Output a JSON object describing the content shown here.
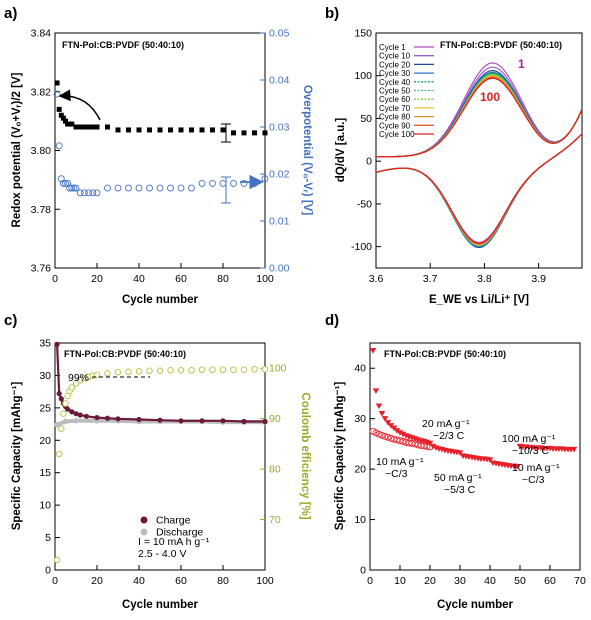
{
  "chart_data": [
    {
      "panel": "a)",
      "type": "scatter",
      "title": "FTN-Pol:CB:PVDF (50:40:10)",
      "xlabel": "Cycle number",
      "ylabel": "Redox potential (Vₒ+Vᵣ)/2 [V]",
      "ylabel_right": "Overpotential (Vₒ-Vᵣ) [V]",
      "xlim": [
        0,
        100
      ],
      "ylim": [
        3.76,
        3.84
      ],
      "ylim_right": [
        0,
        0.05
      ],
      "xticks": [
        "0",
        "20",
        "40",
        "60",
        "80",
        "100"
      ],
      "yticks": [
        "3.76",
        "3.78",
        "3.80",
        "3.82",
        "3.84"
      ],
      "yticks_right": [
        "0.00",
        "0.01",
        "0.02",
        "0.03",
        "0.04",
        "0.05"
      ],
      "colors": {
        "left": "#000000",
        "right": "#4472c4"
      },
      "series": [
        {
          "axis": "left",
          "marker": "filled-square",
          "x": [
            1,
            2,
            3,
            4,
            5,
            6,
            8,
            10,
            12,
            14,
            16,
            18,
            20,
            25,
            30,
            35,
            40,
            45,
            50,
            55,
            60,
            65,
            70,
            75,
            80,
            85,
            90,
            95,
            100
          ],
          "y": [
            3.823,
            3.814,
            3.812,
            3.811,
            3.81,
            3.809,
            3.809,
            3.808,
            3.808,
            3.808,
            3.808,
            3.808,
            3.808,
            3.808,
            3.807,
            3.807,
            3.807,
            3.807,
            3.807,
            3.807,
            3.807,
            3.807,
            3.807,
            3.807,
            3.807,
            3.806,
            3.806,
            3.806,
            3.806
          ]
        },
        {
          "axis": "right",
          "marker": "open-circle",
          "x": [
            1,
            2,
            3,
            4,
            5,
            6,
            7,
            8,
            9,
            10,
            12,
            14,
            16,
            18,
            20,
            25,
            30,
            35,
            40,
            45,
            50,
            55,
            60,
            65,
            70,
            75,
            80,
            85,
            90,
            95,
            100
          ],
          "y": [
            0.037,
            0.026,
            0.019,
            0.018,
            0.018,
            0.018,
            0.017,
            0.017,
            0.017,
            0.017,
            0.016,
            0.016,
            0.016,
            0.016,
            0.016,
            0.017,
            0.017,
            0.017,
            0.017,
            0.017,
            0.017,
            0.017,
            0.017,
            0.017,
            0.018,
            0.018,
            0.018,
            0.018,
            0.018,
            0.018,
            0.019
          ]
        }
      ]
    },
    {
      "panel": "b)",
      "type": "line",
      "title": "FTN-Pol:CB:PVDF (50:40:10)",
      "xlabel": "E_WE vs Li/Li⁺ [V]",
      "ylabel": "dQ/dV [a.u.]",
      "xlim": [
        3.6,
        3.98
      ],
      "ylim": [
        -125,
        150
      ],
      "xticks": [
        "3.6",
        "3.7",
        "3.8",
        "3.9"
      ],
      "yticks": [
        "-100",
        "-50",
        "0",
        "50",
        "100",
        "150"
      ],
      "annotations": [
        "1",
        "100"
      ],
      "legend": "top-left",
      "series": [
        {
          "name": "Cycle 1",
          "color": "#b04fc0",
          "peak": 115,
          "trough": -95
        },
        {
          "name": "Cycle 10",
          "color": "#9b5fd0",
          "peak": 110,
          "trough": -97
        },
        {
          "name": "Cycle 20",
          "color": "#1f4e9c",
          "peak": 106,
          "trough": -101
        },
        {
          "name": "Cycle 30",
          "color": "#2f6fd0",
          "peak": 104,
          "trough": -100
        },
        {
          "name": "Cycle 40",
          "color": "#19a060",
          "peak": 103,
          "trough": -99
        },
        {
          "name": "Cycle 50",
          "color": "#3cc070",
          "peak": 102,
          "trough": -99
        },
        {
          "name": "Cycle 60",
          "color": "#70d040",
          "peak": 101,
          "trough": -98
        },
        {
          "name": "Cycle 70",
          "color": "#e6c830",
          "peak": 100,
          "trough": -98
        },
        {
          "name": "Cycle 80",
          "color": "#e09030",
          "peak": 99,
          "trough": -97
        },
        {
          "name": "Cycle 90",
          "color": "#e06030",
          "peak": 98,
          "trough": -97
        },
        {
          "name": "Cycle 100",
          "color": "#e02020",
          "peak": 97,
          "trough": -96
        }
      ]
    },
    {
      "panel": "c)",
      "type": "scatter",
      "title": "FTN-Pol:CB:PVDF (50:40:10)",
      "xlabel": "Cycle number",
      "ylabel": "Specific Capacity [mAhg⁻¹]",
      "ylabel_right": "Coulomb efficiency [%]",
      "xlim": [
        0,
        100
      ],
      "ylim": [
        0,
        35
      ],
      "ylim_right": [
        60,
        105
      ],
      "xticks": [
        "0",
        "20",
        "40",
        "60",
        "80",
        "100"
      ],
      "yticks": [
        "0",
        "5",
        "10",
        "15",
        "20",
        "25",
        "30",
        "35"
      ],
      "yticks_right": [
        "70",
        "80",
        "90",
        "100"
      ],
      "annotations": [
        "99%",
        "I = 10 mA h g⁻¹",
        "2.5 - 4.0 V"
      ],
      "legend": "bottom-left",
      "colors": {
        "right": "#9aaa2a"
      },
      "series": [
        {
          "name": "Charge",
          "color": "#6b1a3a",
          "x": [
            1,
            2,
            3,
            4,
            5,
            6,
            8,
            10,
            12,
            15,
            20,
            25,
            30,
            40,
            50,
            60,
            70,
            80,
            90,
            100
          ],
          "y": [
            34.8,
            27.2,
            26.4,
            25.7,
            25.2,
            24.8,
            24.4,
            24.1,
            23.9,
            23.7,
            23.5,
            23.4,
            23.3,
            23.2,
            23.1,
            23.0,
            23.0,
            23.0,
            22.9,
            22.9
          ]
        },
        {
          "name": "Discharge",
          "color": "#bdbdbd",
          "x": [
            1,
            5,
            10,
            20,
            30,
            40,
            50,
            60,
            70,
            80,
            90,
            100
          ],
          "y": [
            22.4,
            22.9,
            23.0,
            23.0,
            23.0,
            22.9,
            22.9,
            22.9,
            22.9,
            22.8,
            22.8,
            22.8
          ]
        },
        {
          "name": "Coulomb efficiency",
          "axis": "right",
          "color": "#b5c040",
          "x": [
            1,
            2,
            3,
            4,
            5,
            6,
            7,
            8,
            10,
            12,
            14,
            16,
            18,
            20,
            25,
            30,
            35,
            40,
            45,
            50,
            55,
            60,
            65,
            70,
            75,
            80,
            85,
            90,
            95,
            100
          ],
          "y": [
            62,
            83,
            88,
            91,
            93,
            94.5,
            95.5,
            96.2,
            97.0,
            97.6,
            98.0,
            98.3,
            98.5,
            98.7,
            99.0,
            99.2,
            99.3,
            99.4,
            99.5,
            99.5,
            99.6,
            99.6,
            99.6,
            99.7,
            99.7,
            99.7,
            99.7,
            99.7,
            99.8,
            99.8
          ]
        }
      ]
    },
    {
      "panel": "d)",
      "type": "scatter",
      "title": "FTN-Pol:CB:PVDF (50:40:10)",
      "xlabel": "Cycle number",
      "ylabel": "Specific Capacity [mAhg⁻¹]",
      "xlim": [
        0,
        70
      ],
      "ylim": [
        0,
        45
      ],
      "xticks": [
        "0",
        "10",
        "20",
        "30",
        "40",
        "50",
        "60",
        "70"
      ],
      "yticks": [
        "0",
        "10",
        "20",
        "30",
        "40"
      ],
      "annotations": [
        "20 mA g⁻¹",
        "~2/3 C",
        "100 mA g⁻¹",
        "~10/3 C",
        "10 mA g⁻¹",
        "~C/3",
        "50 mA g⁻¹",
        "~5/3 C",
        "10 mA g⁻¹",
        "~C/3"
      ],
      "colors": {
        "markers": "#e8202a"
      },
      "series": [
        {
          "marker": "filled-triangle",
          "x": [
            1,
            2,
            3,
            4,
            5,
            6,
            7,
            8,
            9,
            10,
            11,
            12,
            13,
            14,
            15,
            16,
            17,
            18,
            19,
            20,
            21,
            22,
            23,
            24,
            25,
            26,
            27,
            28,
            29,
            30,
            31,
            32,
            33,
            34,
            35,
            36,
            37,
            38,
            39,
            40,
            41,
            42,
            43,
            44,
            45,
            46,
            47,
            48,
            49,
            50,
            51,
            52,
            53,
            54,
            55,
            56,
            57,
            58,
            59,
            60,
            61,
            62,
            63,
            64,
            65,
            66,
            67,
            68
          ],
          "y": [
            43.5,
            35.5,
            32.5,
            31.0,
            30.0,
            29.2,
            28.6,
            28.1,
            27.6,
            27.2,
            26.9,
            26.6,
            26.4,
            26.2,
            26.0,
            25.8,
            25.6,
            25.5,
            25.3,
            25.1,
            24.5,
            24.2,
            24.0,
            23.9,
            23.7,
            23.6,
            23.5,
            23.4,
            23.3,
            23.2,
            22.6,
            22.5,
            22.4,
            22.3,
            22.2,
            22.1,
            22.0,
            22.0,
            21.9,
            21.8,
            21.2,
            21.1,
            21.0,
            20.9,
            20.8,
            20.7,
            20.6,
            20.6,
            20.5,
            24.5,
            24.4,
            24.4,
            24.3,
            24.3,
            24.2,
            24.2,
            24.2,
            24.1,
            24.1,
            24.1,
            24.0,
            24.0,
            24.0,
            24.0,
            23.9,
            23.9,
            23.9,
            23.9
          ]
        },
        {
          "marker": "open-circle",
          "x": [
            1,
            2,
            3,
            4,
            5,
            6,
            7,
            8,
            9,
            10,
            11,
            12,
            13,
            14,
            15,
            16,
            17,
            18,
            19,
            20
          ],
          "y": [
            27.5,
            27.2,
            26.9,
            26.7,
            26.5,
            26.3,
            26.1,
            25.9,
            25.8,
            25.6,
            25.5,
            25.3,
            25.2,
            25.1,
            25.0,
            24.8,
            24.7,
            24.6,
            24.5,
            24.4
          ]
        }
      ]
    }
  ]
}
